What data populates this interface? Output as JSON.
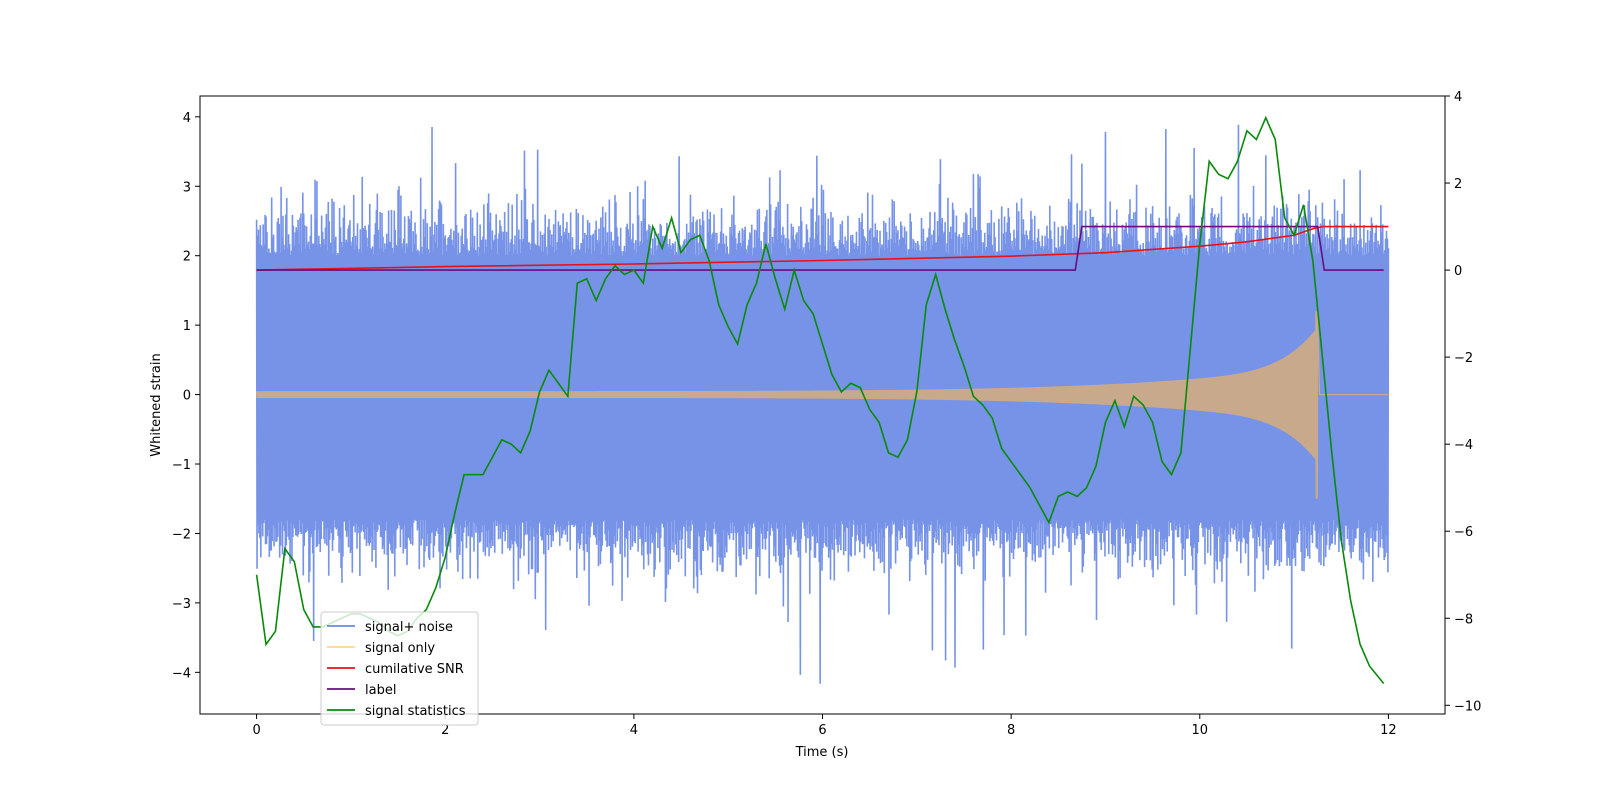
{
  "chart_data": {
    "type": "line",
    "title": "",
    "xlabel": "Time (s)",
    "ylabel": "Whitened strain",
    "y2label": "",
    "xlim": [
      -0.6,
      12.6
    ],
    "ylim": [
      -4.6,
      4.3
    ],
    "y2lim": [
      -10.2,
      4.0
    ],
    "xticks": [
      0,
      2,
      4,
      6,
      8,
      10,
      12
    ],
    "yticks": [
      -4,
      -3,
      -2,
      -1,
      0,
      1,
      2,
      3,
      4
    ],
    "y2ticks": [
      -10,
      -8,
      -6,
      -4,
      -2,
      0,
      2,
      4
    ],
    "xtick_labels": [
      "0",
      "2",
      "4",
      "6",
      "8",
      "10",
      "12"
    ],
    "ytick_labels": [
      "−4",
      "−3",
      "−2",
      "−1",
      "0",
      "1",
      "2",
      "3",
      "4"
    ],
    "y2tick_labels": [
      "−10",
      "−8",
      "−6",
      "−4",
      "−2",
      "0",
      "2",
      "4"
    ],
    "legend_position": "lower-left",
    "series": [
      {
        "name": "signal+ noise",
        "color": "#6a8ae6",
        "axis": "left",
        "kind": "noise band",
        "x_range": [
          0,
          12
        ],
        "typical_range": [
          -2.0,
          2.2
        ],
        "extreme_range": [
          -4.2,
          3.9
        ]
      },
      {
        "name": "signal only",
        "color": "#ffb84d",
        "axis": "left",
        "kind": "chirp",
        "x_range": [
          0,
          12
        ],
        "start_amplitude": 0.05,
        "peak_time": 11.25,
        "peak_upper": 1.2,
        "peak_lower": -1.5
      },
      {
        "name": "cumilative SNR",
        "color": "#e8101a",
        "axis": "right",
        "x": [
          0,
          2,
          4,
          6,
          8,
          9,
          10,
          10.5,
          11,
          11.2,
          11.3,
          12
        ],
        "y": [
          0.0,
          0.08,
          0.14,
          0.22,
          0.32,
          0.4,
          0.55,
          0.65,
          0.8,
          0.95,
          1.0,
          1.0
        ]
      },
      {
        "name": "label",
        "color": "#6a0d83",
        "axis": "right",
        "x": [
          0,
          8.68,
          8.75,
          11.25,
          11.32,
          11.95
        ],
        "y": [
          0,
          0,
          1,
          1,
          0,
          0
        ]
      },
      {
        "name": "signal statistics",
        "color": "#0a8a0a",
        "axis": "right",
        "x": [
          0,
          0.1,
          0.2,
          0.3,
          0.4,
          0.5,
          0.6,
          0.7,
          0.8,
          0.9,
          1.0,
          1.1,
          1.2,
          1.3,
          1.4,
          1.5,
          1.6,
          1.7,
          1.8,
          1.9,
          2.0,
          2.1,
          2.2,
          2.3,
          2.4,
          2.5,
          2.6,
          2.7,
          2.8,
          2.9,
          3.0,
          3.1,
          3.2,
          3.3,
          3.4,
          3.5,
          3.6,
          3.7,
          3.8,
          3.9,
          4.0,
          4.1,
          4.2,
          4.3,
          4.4,
          4.5,
          4.6,
          4.7,
          4.8,
          4.9,
          5.0,
          5.1,
          5.2,
          5.3,
          5.4,
          5.5,
          5.6,
          5.7,
          5.8,
          5.9,
          6.0,
          6.1,
          6.2,
          6.3,
          6.4,
          6.5,
          6.6,
          6.7,
          6.8,
          6.9,
          7.0,
          7.1,
          7.2,
          7.3,
          7.4,
          7.5,
          7.6,
          7.7,
          7.8,
          7.9,
          8.0,
          8.1,
          8.2,
          8.3,
          8.4,
          8.5,
          8.6,
          8.7,
          8.8,
          8.9,
          9.0,
          9.1,
          9.2,
          9.3,
          9.4,
          9.5,
          9.6,
          9.7,
          9.8,
          9.9,
          10.0,
          10.1,
          10.2,
          10.3,
          10.4,
          10.5,
          10.6,
          10.7,
          10.8,
          10.9,
          11.0,
          11.1,
          11.2,
          11.3,
          11.4,
          11.5,
          11.6,
          11.7,
          11.8,
          11.95
        ],
        "y": [
          -7.0,
          -8.6,
          -8.3,
          -6.4,
          -6.7,
          -7.8,
          -8.2,
          -8.2,
          -8.1,
          -8.0,
          -7.9,
          -7.9,
          -8.0,
          -8.1,
          -8.3,
          -8.4,
          -8.3,
          -8.0,
          -7.8,
          -7.3,
          -6.6,
          -5.6,
          -4.7,
          -4.7,
          -4.7,
          -4.3,
          -3.9,
          -4.0,
          -4.2,
          -3.7,
          -2.8,
          -2.3,
          -2.6,
          -2.9,
          -0.3,
          -0.2,
          -0.7,
          -0.2,
          0.1,
          -0.1,
          0.0,
          -0.3,
          1.0,
          0.5,
          1.2,
          0.4,
          0.7,
          0.8,
          0.2,
          -0.8,
          -1.3,
          -1.7,
          -0.8,
          -0.3,
          0.6,
          -0.2,
          -0.9,
          0.0,
          -0.7,
          -1.0,
          -1.7,
          -2.4,
          -2.8,
          -2.6,
          -2.7,
          -3.2,
          -3.5,
          -4.2,
          -4.3,
          -3.9,
          -2.8,
          -0.8,
          -0.1,
          -0.9,
          -1.6,
          -2.2,
          -2.9,
          -3.1,
          -3.4,
          -4.1,
          -4.4,
          -4.7,
          -5.0,
          -5.4,
          -5.8,
          -5.2,
          -5.1,
          -5.2,
          -5.0,
          -4.5,
          -3.5,
          -3.0,
          -3.6,
          -2.9,
          -3.1,
          -3.5,
          -4.4,
          -4.7,
          -4.2,
          -1.8,
          0.6,
          2.5,
          2.2,
          2.1,
          2.5,
          3.2,
          3.0,
          3.5,
          3.0,
          1.2,
          0.8,
          1.5,
          0.2,
          -2.0,
          -4.2,
          -6.2,
          -7.6,
          -8.6,
          -9.1,
          -9.5
        ]
      }
    ]
  }
}
